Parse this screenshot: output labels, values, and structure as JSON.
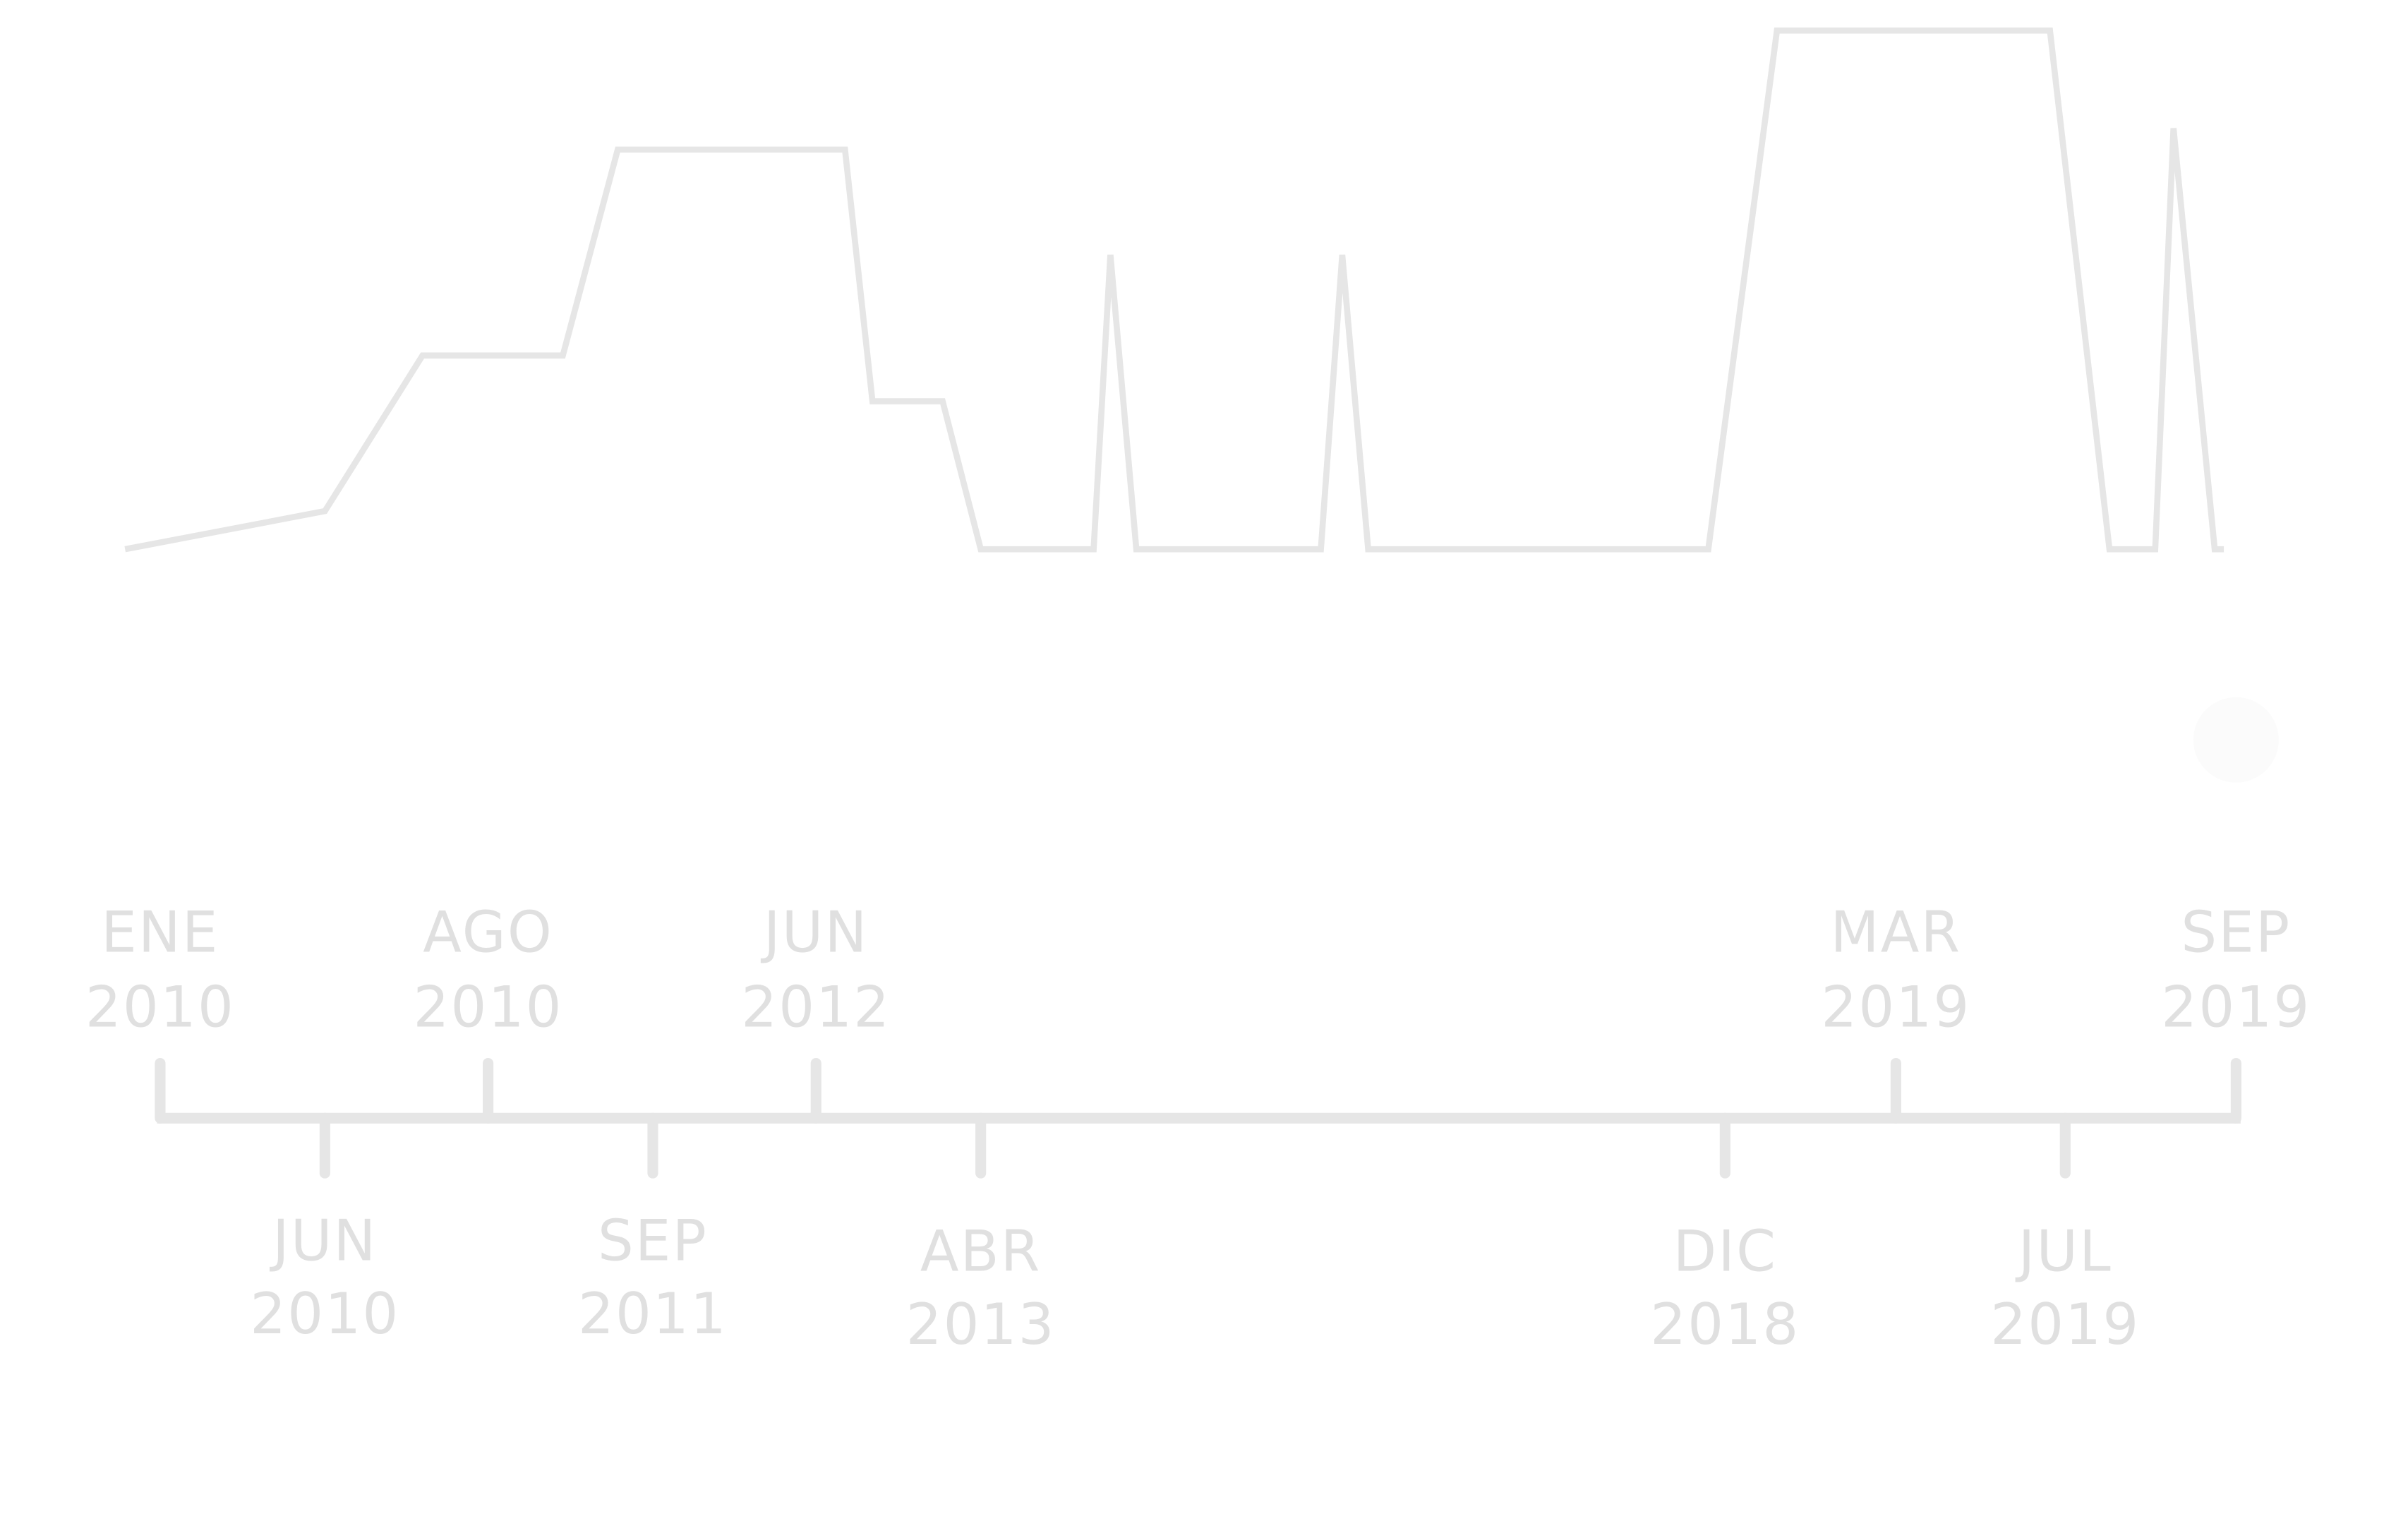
{
  "timeline": {
    "top_labels": [
      {
        "month": "ENE",
        "year": "2010"
      },
      {
        "month": "AGO",
        "year": "2010"
      },
      {
        "month": "JUN",
        "year": "2012"
      },
      {
        "month": "MAR",
        "year": "2019"
      },
      {
        "month": "SEP",
        "year": "2019"
      }
    ],
    "bottom_labels": [
      {
        "month": "JUN",
        "year": "2010"
      },
      {
        "month": "SEP",
        "year": "2011"
      },
      {
        "month": "ABR",
        "year": "2013"
      },
      {
        "month": "DIC",
        "year": "2018"
      },
      {
        "month": "JUL",
        "year": "2019"
      }
    ]
  }
}
